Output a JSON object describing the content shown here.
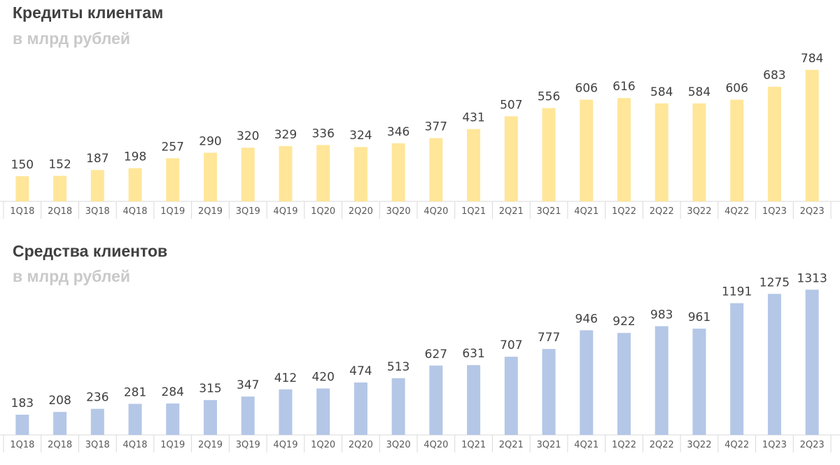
{
  "chart_data": [
    {
      "type": "bar",
      "title": "Кредиты клиентам",
      "subtitle": "в млрд рублей",
      "color": "#FFE699",
      "categories": [
        "1Q18",
        "2Q18",
        "3Q18",
        "4Q18",
        "1Q19",
        "2Q19",
        "3Q19",
        "4Q19",
        "1Q20",
        "2Q20",
        "3Q20",
        "4Q20",
        "1Q21",
        "2Q21",
        "3Q21",
        "4Q21",
        "1Q22",
        "2Q22",
        "3Q22",
        "4Q22",
        "1Q23",
        "2Q23"
      ],
      "values": [
        150,
        152,
        187,
        198,
        257,
        290,
        320,
        329,
        336,
        324,
        346,
        377,
        431,
        507,
        556,
        606,
        616,
        584,
        584,
        606,
        683,
        784
      ],
      "xlabel": "",
      "ylabel": "",
      "ylim": [
        0,
        800
      ],
      "grid": false,
      "data_labels": true
    },
    {
      "type": "bar",
      "title": "Средства клиентов",
      "subtitle": "в млрд рублей",
      "color": "#B4C7E7",
      "categories": [
        "1Q18",
        "2Q18",
        "3Q18",
        "4Q18",
        "1Q19",
        "2Q19",
        "3Q19",
        "4Q19",
        "1Q20",
        "2Q20",
        "3Q20",
        "4Q20",
        "1Q21",
        "2Q21",
        "3Q21",
        "4Q21",
        "1Q22",
        "2Q22",
        "3Q22",
        "4Q22",
        "1Q23",
        "2Q23"
      ],
      "values": [
        183,
        208,
        236,
        281,
        284,
        315,
        347,
        412,
        420,
        474,
        513,
        627,
        631,
        707,
        777,
        946,
        922,
        983,
        961,
        1191,
        1275,
        1313
      ],
      "xlabel": "",
      "ylabel": "",
      "ylim": [
        0,
        1340
      ],
      "grid": false,
      "data_labels": true
    }
  ]
}
